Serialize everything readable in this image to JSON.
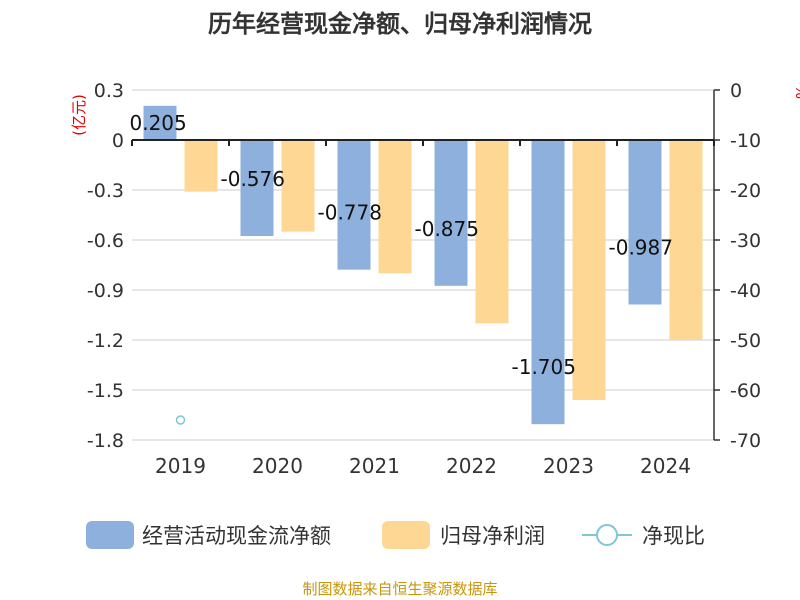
{
  "chart_data": {
    "type": "bar",
    "title": "历年经营现金净额、归母净利润情况",
    "categories": [
      "2019",
      "2020",
      "2021",
      "2022",
      "2023",
      "2024"
    ],
    "y_left": {
      "label": "(亿元)",
      "ylim": [
        -1.8,
        0.3
      ],
      "ticks": [
        0.3,
        0,
        -0.3,
        -0.6,
        -0.9,
        -1.2,
        -1.5,
        -1.8
      ]
    },
    "y_right": {
      "label": "%",
      "ylim": [
        -70,
        0
      ],
      "ticks": [
        0,
        -10,
        -20,
        -30,
        -40,
        -50,
        -60,
        -70
      ]
    },
    "series": [
      {
        "name": "经营活动现金流净额",
        "axis": "left",
        "color": "#8eb0dd",
        "values": [
          0.205,
          -0.576,
          -0.778,
          -0.875,
          -1.705,
          -0.987
        ],
        "data_labels": [
          "0.205",
          "-0.576",
          "-0.778",
          "-0.875",
          "-1.705",
          "-0.987"
        ]
      },
      {
        "name": "归母净利润",
        "axis": "left",
        "color": "#fed795",
        "values": [
          -0.31,
          -0.55,
          -0.8,
          -1.1,
          -1.56,
          -1.2
        ]
      },
      {
        "name": "净现比",
        "axis": "right",
        "type": "line",
        "color": "#7ec7d6",
        "values": [
          -66,
          null,
          null,
          null,
          null,
          null
        ]
      }
    ],
    "grid": true,
    "legend_position": "bottom"
  },
  "footer": {
    "source": "制图数据来自恒生聚源数据库"
  },
  "colors": {
    "title": "#333333",
    "axis_unit": "#e00000",
    "tick": "#333333",
    "grid": "#cccccc",
    "footer": "#c8960c"
  }
}
